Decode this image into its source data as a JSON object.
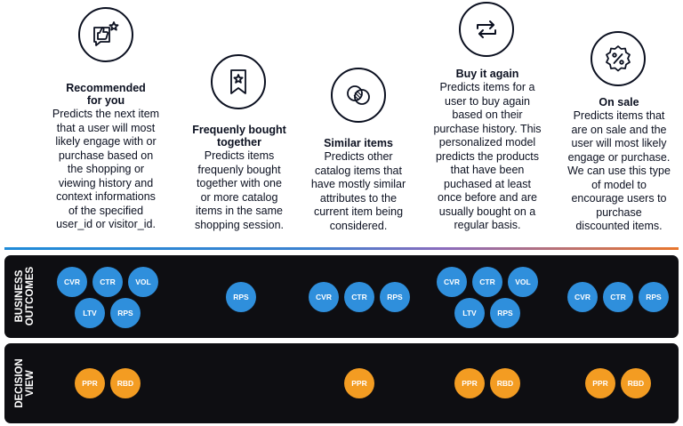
{
  "columns": [
    {
      "title_lines": [
        "Recommended",
        "for you"
      ],
      "icon": "thumbs-up-star-icon",
      "desc_lines": [
        "Predicts the next item",
        "that a user will most",
        "likely engage with or",
        "purchase based on",
        "the shopping or",
        "viewing history and",
        "context informations",
        "of the specified",
        "user_id or visitor_id."
      ]
    },
    {
      "title_lines": [
        "Frequenly bought",
        "together"
      ],
      "icon": "bookmark-star-icon",
      "desc_lines": [
        "Predicts items",
        "frequenly bought",
        "together with one",
        "or more catalog",
        "items in the same",
        "shopping session."
      ]
    },
    {
      "title_lines": [
        "Similar items"
      ],
      "icon": "overlapping-circles-icon",
      "desc_lines": [
        "Predicts other",
        "catalog items that",
        "have mostly similar",
        "attributes to the",
        "current item being",
        "considered."
      ]
    },
    {
      "title_lines": [
        "Buy it again"
      ],
      "icon": "repeat-arrows-icon",
      "desc_lines": [
        "Predicts items for a",
        "user to buy again",
        "based on their",
        "purchase history. This",
        "personalized model",
        "predicts the products",
        "that have been",
        "puchased at least",
        "once before and are",
        "usually bought on a",
        "regular basis."
      ]
    },
    {
      "title_lines": [
        "On sale"
      ],
      "icon": "discount-badge-icon",
      "desc_lines": [
        "Predicts items that",
        "are on sale and the",
        "user will most likely",
        "engage or purchase.",
        "We can use this type",
        "of model to",
        "encourage users to",
        "purchase",
        "discounted items."
      ]
    }
  ],
  "business": {
    "label_lines": [
      "BUSINESS",
      "OUTCOMES"
    ],
    "color": "#2f8fdc",
    "badges": [
      [
        "CVR",
        "CTR",
        "VOL",
        "LTV",
        "RPS"
      ],
      [
        "RPS"
      ],
      [
        "CVR",
        "CTR",
        "RPS"
      ],
      [
        "CVR",
        "CTR",
        "VOL",
        "LTV",
        "RPS"
      ],
      [
        "CVR",
        "CTR",
        "RPS"
      ]
    ]
  },
  "decision": {
    "label_lines": [
      "DECISION",
      "VIEW"
    ],
    "color": "#f39c22",
    "badges": [
      [
        "PPR",
        "RBD"
      ],
      [
        "PPR"
      ],
      [
        "PPR",
        "RBD"
      ],
      [
        "PPR",
        "RBD"
      ]
    ]
  },
  "divider_colors": [
    "#1f8bd8",
    "#e8762c"
  ]
}
